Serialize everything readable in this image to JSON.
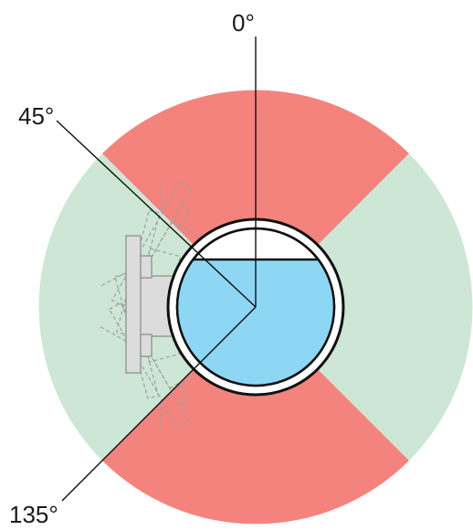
{
  "labels": {
    "top": "0°",
    "upper_left": "45°",
    "lower_left": "135°"
  },
  "colors": {
    "forbidden_zone": "#f4837d",
    "allowed_zone": "#cde6d5",
    "liquid": "#8dd7f5",
    "pipe_outline": "#111111",
    "device_outline": "#9a9a9a",
    "device_fill": "#dcdcdc",
    "leader_line": "#111111"
  }
}
